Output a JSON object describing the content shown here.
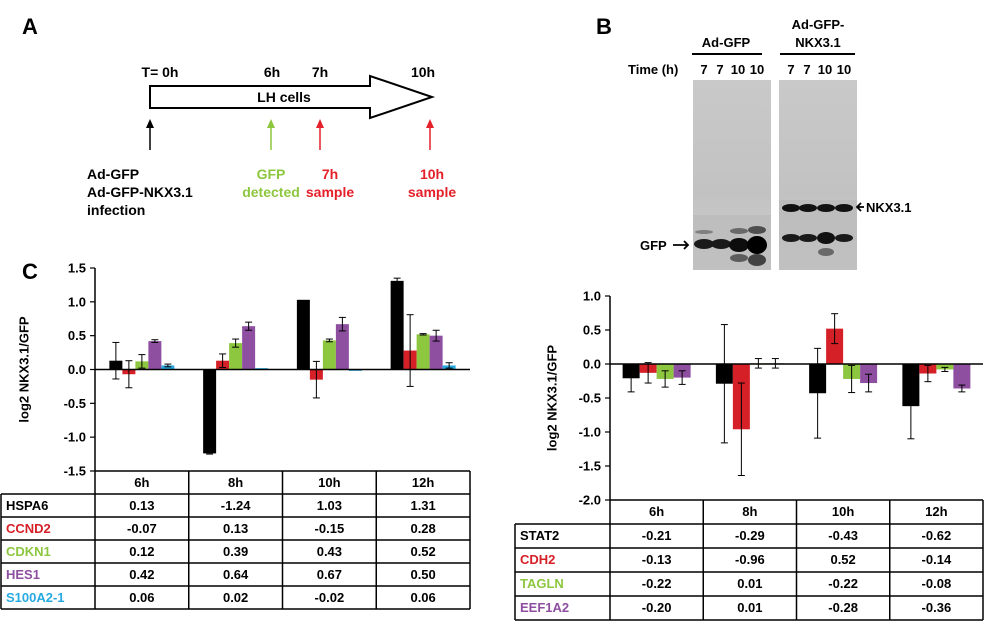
{
  "panel_a": {
    "label": "A",
    "timepoints": [
      "T= 0h",
      "6h",
      "7h",
      "10h"
    ],
    "arrow_label": "LH cells",
    "events": [
      {
        "lines": [
          "Ad-GFP",
          "Ad-GFP-NKX3.1",
          "infection"
        ],
        "color": "#000000"
      },
      {
        "lines": [
          "GFP",
          "detected"
        ],
        "color": "#8dc63f"
      },
      {
        "lines": [
          "7h",
          "sample"
        ],
        "color": "#e4202a"
      },
      {
        "lines": [
          "10h",
          "sample"
        ],
        "color": "#e4202a"
      }
    ]
  },
  "panel_b": {
    "label": "B",
    "group1": "Ad-GFP",
    "group2_line1": "Ad-GFP-",
    "group2_line2": "NKX3.1",
    "time_label": "Time (h)",
    "lanes1": [
      "7",
      "7",
      "10",
      "10"
    ],
    "lanes2": [
      "7",
      "7",
      "10",
      "10"
    ],
    "band_labels": {
      "nkx": "NKX3.1",
      "gfp": "GFP"
    }
  },
  "chart_data": [
    {
      "type": "bar",
      "panel_label": "C",
      "ylabel": "log2 NKX3.1/GFP",
      "ylim": [
        -1.5,
        1.5
      ],
      "yticks": [
        "1.5",
        "1.0",
        "0.5",
        "0.0",
        "-0.5",
        "-1.0",
        "-1.5"
      ],
      "categories": [
        "6h",
        "8h",
        "10h",
        "12h"
      ],
      "series": [
        {
          "name": "HSPA6",
          "color": "#000000",
          "values": [
            0.13,
            -1.24,
            1.03,
            1.31
          ],
          "labels": [
            "0.13",
            "-1.24",
            "1.03",
            "1.31"
          ],
          "err": [
            0.27,
            0.01,
            0.0,
            0.04
          ]
        },
        {
          "name": "CCND2",
          "color": "#d62027",
          "values": [
            -0.07,
            0.13,
            -0.15,
            0.28
          ],
          "labels": [
            "-0.07",
            "0.13",
            "-0.15",
            "0.28"
          ],
          "err": [
            0.2,
            0.1,
            0.27,
            0.53
          ]
        },
        {
          "name": "CDKN1",
          "color": "#8dc63f",
          "values": [
            0.12,
            0.39,
            0.43,
            0.52
          ],
          "labels": [
            "0.12",
            "0.39",
            "0.43",
            "0.52"
          ],
          "err": [
            0.1,
            0.06,
            0.02,
            0.01
          ]
        },
        {
          "name": "HES1",
          "color": "#8e4fa0",
          "values": [
            0.42,
            0.64,
            0.67,
            0.5
          ],
          "labels": [
            "0.42",
            "0.64",
            "0.67",
            "0.50"
          ],
          "err": [
            0.02,
            0.06,
            0.1,
            0.08
          ]
        },
        {
          "name": "S100A2-1",
          "color": "#27aae1",
          "values": [
            0.06,
            0.02,
            -0.02,
            0.06
          ],
          "labels": [
            "0.06",
            "0.02",
            "-0.02",
            "0.06"
          ],
          "err": [
            0.02,
            0.0,
            0.0,
            0.04
          ]
        }
      ]
    },
    {
      "type": "bar",
      "panel_label": "",
      "ylabel": "log2 NKX3.1/GFP",
      "ylim": [
        -2.0,
        1.0
      ],
      "yticks": [
        "1.0",
        "0.5",
        "0.0",
        "-0.5",
        "-1.0",
        "-1.5",
        "-2.0"
      ],
      "categories": [
        "6h",
        "8h",
        "10h",
        "12h"
      ],
      "series": [
        {
          "name": "STAT2",
          "color": "#000000",
          "values": [
            -0.21,
            -0.29,
            -0.43,
            -0.62
          ],
          "labels": [
            "-0.21",
            "-0.29",
            "-0.43",
            "-0.62"
          ],
          "err": [
            0.2,
            0.87,
            0.66,
            0.48
          ]
        },
        {
          "name": "CDH2",
          "color": "#d62027",
          "values": [
            -0.13,
            -0.96,
            0.52,
            -0.14
          ],
          "labels": [
            "-0.13",
            "-0.96",
            "0.52",
            "-0.14"
          ],
          "err": [
            0.15,
            0.68,
            0.22,
            0.12
          ]
        },
        {
          "name": "TAGLN",
          "color": "#8dc63f",
          "values": [
            -0.22,
            0.01,
            -0.22,
            -0.08
          ],
          "labels": [
            "-0.22",
            "0.01",
            "-0.22",
            "-0.08"
          ],
          "err": [
            0.12,
            0.07,
            0.2,
            0.03
          ]
        },
        {
          "name": "EEF1A2",
          "color": "#8e4fa0",
          "values": [
            -0.2,
            0.01,
            -0.28,
            -0.36
          ],
          "labels": [
            "-0.20",
            "0.01",
            "-0.28",
            "-0.36"
          ],
          "err": [
            0.1,
            0.07,
            0.13,
            0.05
          ]
        }
      ]
    }
  ]
}
